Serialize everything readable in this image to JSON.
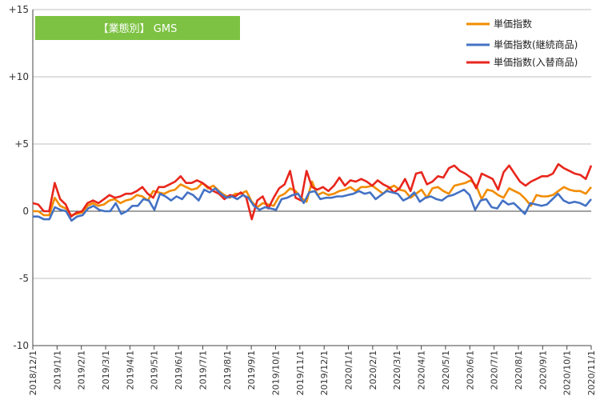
{
  "chart_data": {
    "type": "line",
    "title": "【業態別】 GMS",
    "ylim": [
      -10,
      15
    ],
    "yticks": [
      15,
      10,
      5,
      0,
      -5,
      -10
    ],
    "ytick_labels": [
      "+15",
      "+10",
      "+5",
      "0",
      "-5",
      "-10"
    ],
    "x_tick_labels": [
      "2018/12/1",
      "2019/1/1",
      "2019/2/1",
      "2019/3/1",
      "2019/4/1",
      "2019/5/1",
      "2019/6/1",
      "2019/7/1",
      "2019/8/1",
      "2019/9/1",
      "2019/10/1",
      "2019/11/1",
      "2019/12/1",
      "2020/1/1",
      "2020/2/1",
      "2020/3/1",
      "2020/4/1",
      "2020/5/1",
      "2020/6/1",
      "2020/7/1",
      "2020/8/1",
      "2020/9/1",
      "2020/10/1",
      "2020/11/1"
    ],
    "grid": "horizontal",
    "legend_position": "top-right",
    "series": [
      {
        "name": "単価指数",
        "color": "#F28C00",
        "values": [
          0.0,
          0.0,
          -0.3,
          -0.3,
          1.0,
          0.4,
          0.2,
          -0.3,
          -0.2,
          -0.1,
          0.4,
          0.6,
          0.4,
          0.5,
          0.8,
          0.9,
          0.6,
          0.8,
          0.9,
          1.2,
          1.1,
          0.8,
          1.5,
          1.4,
          1.3,
          1.5,
          1.6,
          2.0,
          1.8,
          1.6,
          1.7,
          2.1,
          1.7,
          1.9,
          1.5,
          1.2,
          1.0,
          1.3,
          1.3,
          1.5,
          0.7,
          0.3,
          0.6,
          0.5,
          0.4,
          1.1,
          1.3,
          1.7,
          1.5,
          1.0,
          0.7,
          2.2,
          1.2,
          1.4,
          1.2,
          1.3,
          1.5,
          1.6,
          1.8,
          1.5,
          1.8,
          1.8,
          1.9,
          1.6,
          1.3,
          1.7,
          1.9,
          1.6,
          1.5,
          1.0,
          1.3,
          1.6,
          1.0,
          1.7,
          1.8,
          1.5,
          1.3,
          1.9,
          2.0,
          2.1,
          2.3,
          1.9,
          0.9,
          1.6,
          1.5,
          1.2,
          1.0,
          1.7,
          1.5,
          1.3,
          0.9,
          0.4,
          1.2,
          1.1,
          1.1,
          1.2,
          1.5,
          1.8,
          1.6,
          1.5,
          1.5,
          1.3,
          1.8
        ]
      },
      {
        "name": "単価指数(継続商品)",
        "color": "#4472C4",
        "values": [
          -0.4,
          -0.4,
          -0.6,
          -0.6,
          0.3,
          0.1,
          0.0,
          -0.7,
          -0.4,
          -0.3,
          0.2,
          0.4,
          0.1,
          0.0,
          0.0,
          0.6,
          -0.2,
          0.0,
          0.4,
          0.4,
          0.9,
          0.8,
          0.1,
          1.3,
          1.1,
          0.8,
          1.1,
          0.9,
          1.4,
          1.2,
          0.8,
          1.6,
          1.4,
          1.7,
          1.3,
          1.0,
          1.1,
          0.9,
          1.2,
          1.0,
          0.4,
          0.1,
          0.3,
          0.2,
          0.1,
          0.9,
          1.0,
          1.2,
          1.3,
          0.6,
          1.4,
          1.5,
          0.9,
          1.0,
          1.0,
          1.1,
          1.1,
          1.2,
          1.3,
          1.5,
          1.3,
          1.4,
          0.9,
          1.2,
          1.5,
          1.4,
          1.3,
          0.8,
          1.0,
          1.4,
          0.7,
          1.0,
          1.1,
          0.9,
          0.8,
          1.1,
          1.2,
          1.4,
          1.6,
          1.2,
          0.1,
          0.8,
          0.9,
          0.3,
          0.2,
          0.8,
          0.5,
          0.6,
          0.2,
          -0.2,
          0.6,
          0.5,
          0.4,
          0.5,
          0.9,
          1.3,
          0.8,
          0.6,
          0.7,
          0.6,
          0.4,
          0.9
        ]
      },
      {
        "name": "単価指数(入替商品)",
        "color": "#E8261C",
        "values": [
          0.6,
          0.5,
          0.0,
          0.0,
          2.1,
          0.9,
          0.5,
          -0.4,
          -0.1,
          0.0,
          0.6,
          0.8,
          0.6,
          0.9,
          1.2,
          1.0,
          1.1,
          1.3,
          1.3,
          1.5,
          1.8,
          1.3,
          1.0,
          1.8,
          1.8,
          2.0,
          2.2,
          2.6,
          2.1,
          2.1,
          2.3,
          2.1,
          1.8,
          1.5,
          1.3,
          0.9,
          1.2,
          1.1,
          1.4,
          1.0,
          -0.6,
          0.8,
          1.1,
          0.2,
          1.0,
          1.7,
          2.0,
          3.0,
          1.0,
          0.8,
          3.0,
          1.8,
          1.6,
          1.8,
          1.5,
          1.9,
          2.5,
          1.9,
          2.3,
          2.2,
          2.4,
          2.2,
          1.9,
          2.3,
          2.0,
          1.8,
          1.4,
          1.7,
          2.4,
          1.5,
          2.8,
          2.9,
          2.0,
          2.2,
          2.6,
          2.5,
          3.2,
          3.4,
          3.0,
          2.8,
          2.5,
          1.7,
          2.8,
          2.6,
          2.4,
          1.6,
          2.9,
          3.4,
          2.8,
          2.2,
          1.9,
          2.2,
          2.4,
          2.6,
          2.6,
          2.8,
          3.5,
          3.2,
          3.0,
          2.8,
          2.7,
          2.4,
          3.4
        ]
      }
    ]
  }
}
